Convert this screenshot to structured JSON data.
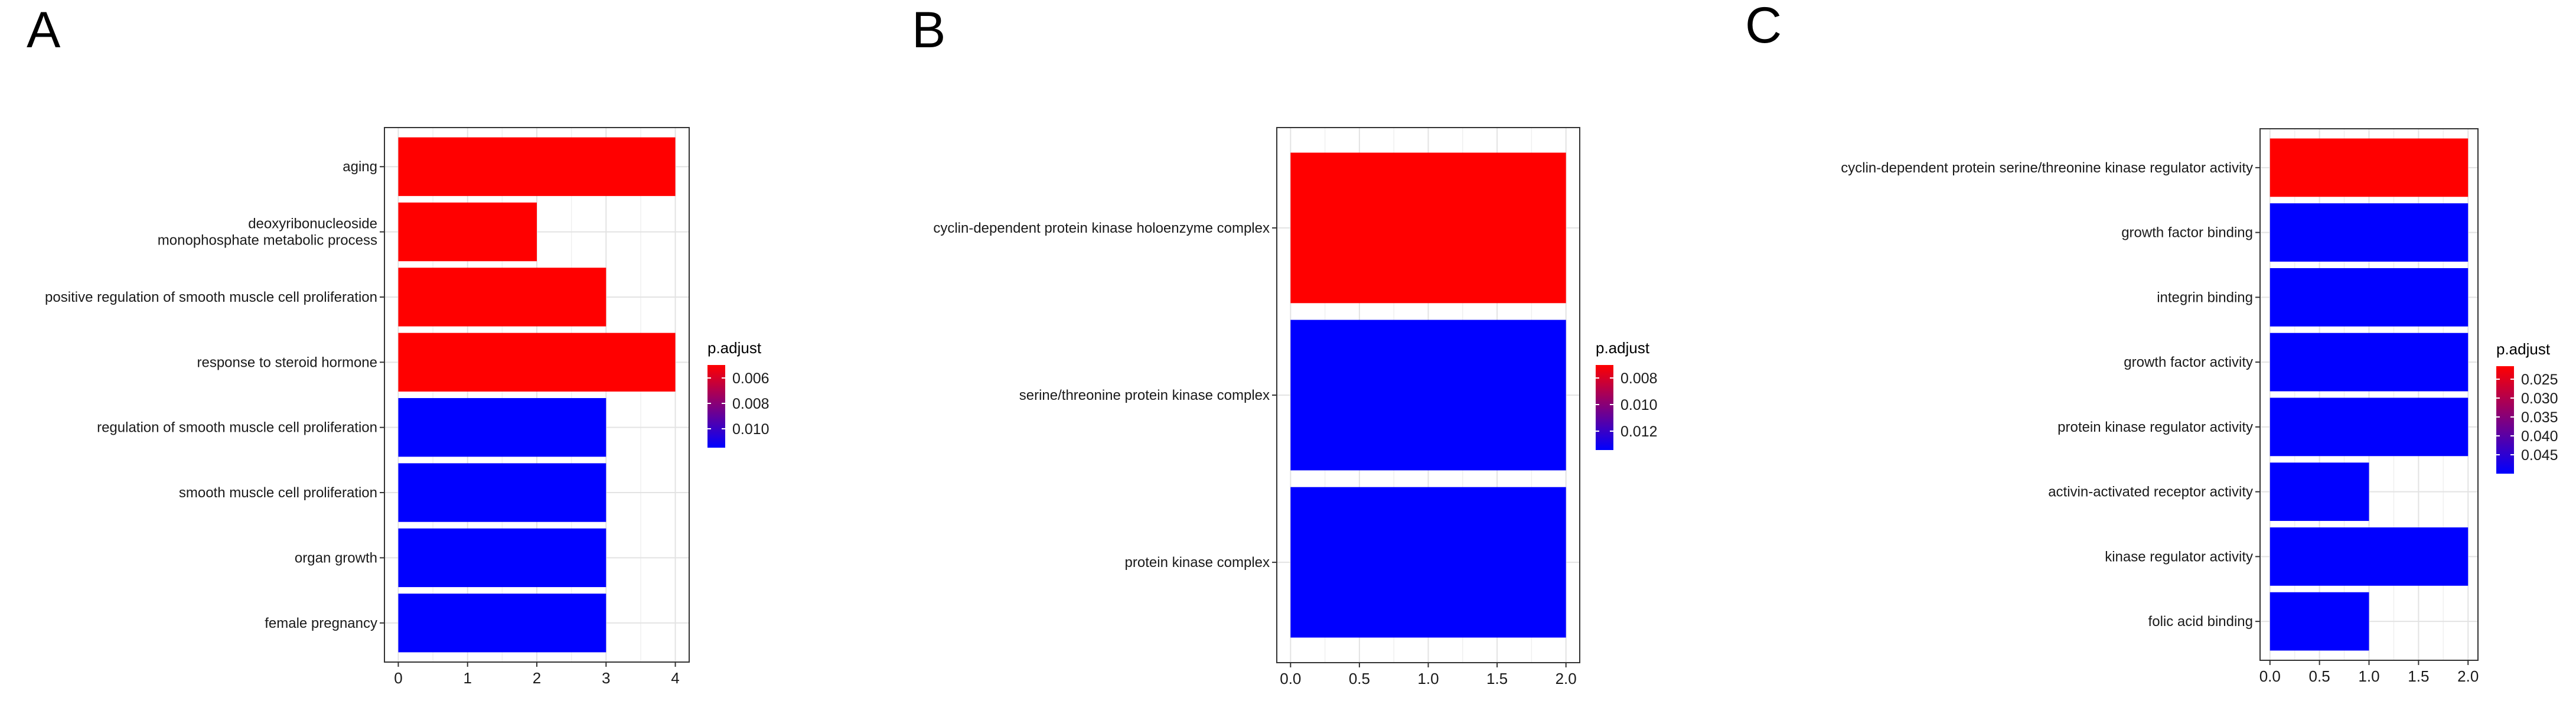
{
  "panels": [
    {
      "panel_label": "A",
      "legend_title": "p.adjust",
      "legend_ticks": [
        "0.006",
        "0.008",
        "0.010"
      ],
      "color_high": "#FF0000",
      "color_low": "#0000FF"
    },
    {
      "panel_label": "B",
      "legend_title": "p.adjust",
      "legend_ticks": [
        "0.008",
        "0.010",
        "0.012"
      ],
      "color_high": "#FF0000",
      "color_low": "#0000FF"
    },
    {
      "panel_label": "C",
      "legend_title": "p.adjust",
      "legend_ticks": [
        "0.025",
        "0.030",
        "0.035",
        "0.040",
        "0.045"
      ],
      "color_high": "#FF0000",
      "color_low": "#0000FF"
    }
  ],
  "chart_data": [
    {
      "type": "bar",
      "orientation": "horizontal",
      "categories": [
        "aging",
        "deoxyribonucleoside\nmonophosphate metabolic process",
        "positive regulation of smooth muscle cell proliferation",
        "response to steroid hormone",
        "regulation of smooth muscle cell proliferation",
        "smooth muscle cell proliferation",
        "organ growth",
        "female pregnancy"
      ],
      "values": [
        4,
        2,
        3,
        4,
        3,
        3,
        3,
        3
      ],
      "colors": [
        "#FF0000",
        "#FF0000",
        "#FF0000",
        "#FF0000",
        "#0000FF",
        "#0000FF",
        "#0000FF",
        "#0000FF"
      ],
      "xticks": [
        "0",
        "1",
        "2",
        "3",
        "4"
      ],
      "xlim": [
        -0.2,
        4.2
      ],
      "grid": true,
      "legend_position": "right"
    },
    {
      "type": "bar",
      "orientation": "horizontal",
      "categories": [
        "cyclin-dependent protein kinase holoenzyme complex",
        "serine/threonine protein kinase complex",
        "protein kinase complex"
      ],
      "values": [
        2,
        2,
        2
      ],
      "colors": [
        "#FF0000",
        "#0000FF",
        "#0000FF"
      ],
      "xticks": [
        "0.0",
        "0.5",
        "1.0",
        "1.5",
        "2.0"
      ],
      "xlim": [
        -0.1,
        2.1
      ],
      "grid": true,
      "legend_position": "right"
    },
    {
      "type": "bar",
      "orientation": "horizontal",
      "categories": [
        "cyclin-dependent protein serine/threonine kinase regulator activity",
        "growth factor binding",
        "integrin binding",
        "growth factor activity",
        "protein kinase regulator activity",
        "activin-activated receptor activity",
        "kinase regulator activity",
        "folic acid binding"
      ],
      "values": [
        2,
        2,
        2,
        2,
        2,
        1,
        2,
        1
      ],
      "colors": [
        "#FF0000",
        "#0000FF",
        "#0000FF",
        "#0000FF",
        "#0000FF",
        "#0000FF",
        "#0000FF",
        "#0000FF"
      ],
      "xticks": [
        "0.0",
        "0.5",
        "1.0",
        "1.5",
        "2.0"
      ],
      "xlim": [
        -0.1,
        2.1
      ],
      "grid": true,
      "legend_position": "right"
    }
  ]
}
